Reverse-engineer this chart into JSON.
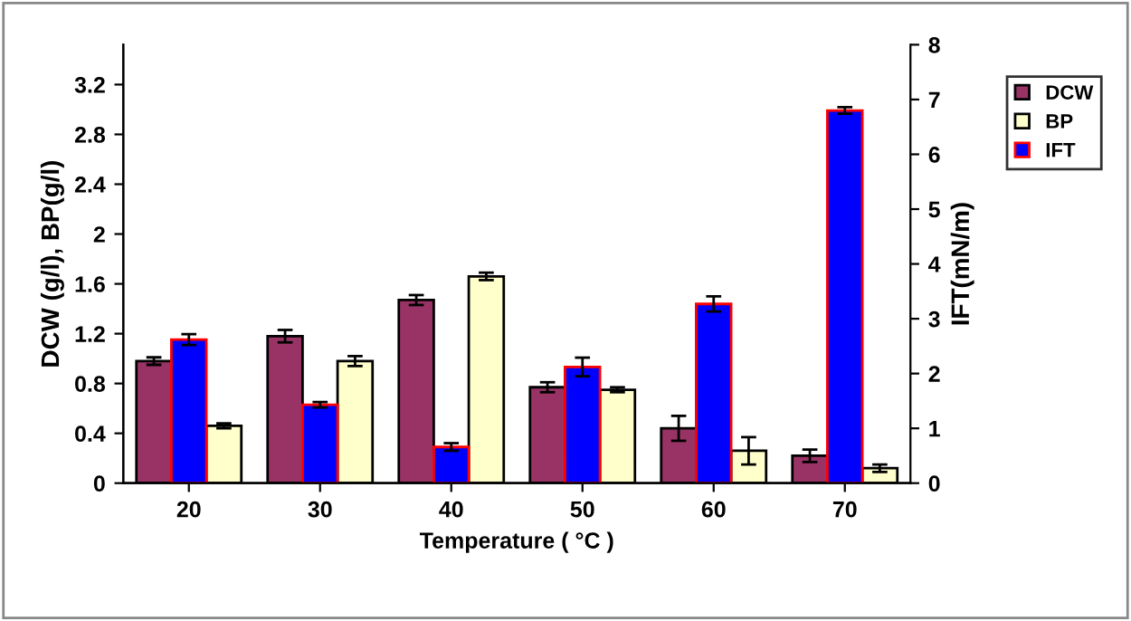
{
  "chart_data": {
    "type": "bar",
    "xlabel": "Temperature ( °C )",
    "ylabel": "DCW (g/l), BP(g/l)",
    "y2label": "IFT(mN/m)",
    "categories": [
      "20",
      "30",
      "40",
      "50",
      "60",
      "70"
    ],
    "series": [
      {
        "name": "DCW",
        "color": "#993366",
        "values": [
          0.98,
          1.18,
          1.47,
          0.77,
          0.44,
          0.22
        ],
        "errors": [
          0.03,
          0.05,
          0.04,
          0.04,
          0.1,
          0.05
        ]
      },
      {
        "name": "IFT",
        "color": "#0000ff",
        "axis": "y2",
        "values": [
          2.62,
          1.43,
          0.66,
          2.12,
          3.27,
          6.8
        ],
        "errors": [
          0.1,
          0.05,
          0.07,
          0.17,
          0.14,
          0.06
        ]
      },
      {
        "name": "BP",
        "color": "#ffffcc",
        "values": [
          0.46,
          0.98,
          1.66,
          0.75,
          0.26,
          0.12
        ],
        "errors": [
          0.02,
          0.04,
          0.03,
          0.02,
          0.11,
          0.03
        ]
      }
    ],
    "ylim": [
      0,
      3.52
    ],
    "yticks": [
      0,
      0.4,
      0.8,
      1.2,
      1.6,
      2,
      2.4,
      2.8,
      3.2
    ],
    "y2lim": [
      0,
      8
    ],
    "y2ticks": [
      0,
      1,
      2,
      3,
      4,
      5,
      6,
      7,
      8
    ],
    "grid": false,
    "legend": "top right"
  }
}
